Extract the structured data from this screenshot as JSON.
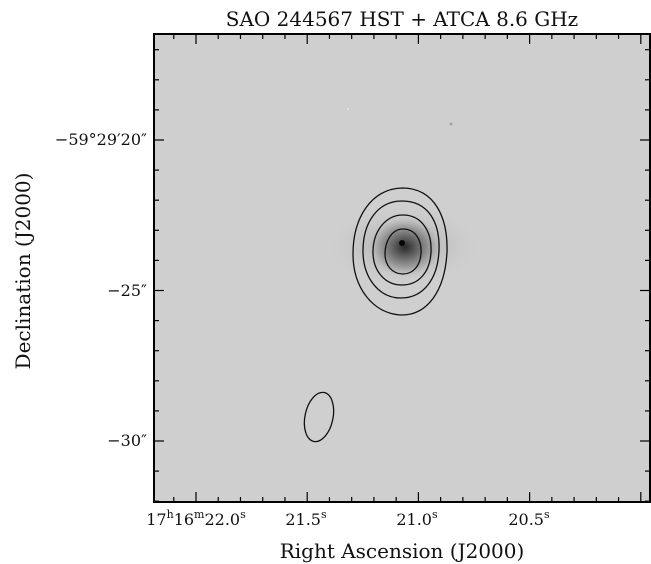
{
  "figure": {
    "title": "SAO 244567 HST + ATCA 8.6 GHz",
    "xlabel": "Right Ascension (J2000)",
    "ylabel": "Declination (J2000)",
    "x_ticks": [
      {
        "prefix": "17",
        "h": "h",
        "mid": "16",
        "m": "m",
        "main": "22.0",
        "sup": "s"
      },
      {
        "prefix": "",
        "h": "",
        "mid": "",
        "m": "",
        "main": "21.5",
        "sup": "s"
      },
      {
        "prefix": "",
        "h": "",
        "mid": "",
        "m": "",
        "main": "21.0",
        "sup": "s"
      },
      {
        "prefix": "",
        "h": "",
        "mid": "",
        "m": "",
        "main": "20.5",
        "sup": "s"
      }
    ],
    "y_ticks": [
      "−59°29′20″",
      "−25″",
      "−30″"
    ],
    "colors": {
      "background_image": "#cfcfcf",
      "contour": "#111111",
      "frame": "#000000"
    },
    "contour_levels": 4,
    "has_beam_ellipse": true
  }
}
